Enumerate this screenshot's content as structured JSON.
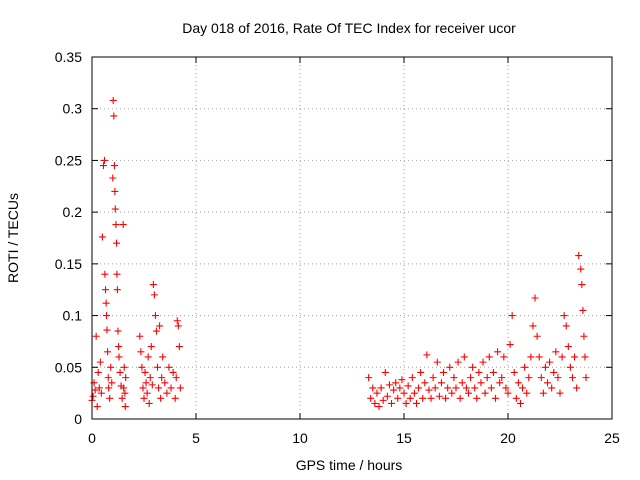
{
  "chart_data": {
    "type": "scatter",
    "title": "Day 018 of 2016, Rate Of TEC Index for receiver ucor",
    "xlabel": "GPS time / hours",
    "ylabel": "ROTI / TECUs",
    "xlim": [
      0,
      25
    ],
    "ylim": [
      0,
      0.35
    ],
    "xticks": [
      "0",
      "5",
      "10",
      "15",
      "20",
      "25"
    ],
    "yticks": [
      "0",
      "0.05",
      "0.1",
      "0.15",
      "0.2",
      "0.25",
      "0.3",
      "0.35"
    ],
    "grid": true,
    "marker": "+",
    "color": "#ff0000",
    "series": [
      {
        "points": [
          [
            0.0,
            0.018
          ],
          [
            0.05,
            0.022
          ],
          [
            0.1,
            0.035
          ],
          [
            0.15,
            0.028
          ],
          [
            0.2,
            0.08
          ],
          [
            0.25,
            0.012
          ],
          [
            0.3,
            0.045
          ],
          [
            0.35,
            0.03
          ],
          [
            0.4,
            0.055
          ],
          [
            0.45,
            0.025
          ],
          [
            0.5,
            0.176
          ],
          [
            0.55,
            0.245
          ],
          [
            0.6,
            0.25
          ],
          [
            0.62,
            0.14
          ],
          [
            0.65,
            0.125
          ],
          [
            0.68,
            0.112
          ],
          [
            0.7,
            0.1
          ],
          [
            0.72,
            0.086
          ],
          [
            0.75,
            0.065
          ],
          [
            0.78,
            0.04
          ],
          [
            0.8,
            0.03
          ],
          [
            0.85,
            0.02
          ],
          [
            0.9,
            0.05
          ],
          [
            0.95,
            0.035
          ],
          [
            1.0,
            0.233
          ],
          [
            1.02,
            0.308
          ],
          [
            1.05,
            0.293
          ],
          [
            1.08,
            0.245
          ],
          [
            1.1,
            0.22
          ],
          [
            1.12,
            0.203
          ],
          [
            1.15,
            0.188
          ],
          [
            1.18,
            0.17
          ],
          [
            1.2,
            0.14
          ],
          [
            1.22,
            0.125
          ],
          [
            1.25,
            0.085
          ],
          [
            1.28,
            0.07
          ],
          [
            1.3,
            0.06
          ],
          [
            1.35,
            0.045
          ],
          [
            1.4,
            0.032
          ],
          [
            1.45,
            0.02
          ],
          [
            1.5,
            0.188
          ],
          [
            1.52,
            0.03
          ],
          [
            1.55,
            0.05
          ],
          [
            1.58,
            0.025
          ],
          [
            1.6,
            0.012
          ],
          [
            1.62,
            0.04
          ],
          [
            2.3,
            0.08
          ],
          [
            2.35,
            0.065
          ],
          [
            2.4,
            0.05
          ],
          [
            2.45,
            0.03
          ],
          [
            2.5,
            0.02
          ],
          [
            2.55,
            0.045
          ],
          [
            2.6,
            0.035
          ],
          [
            2.65,
            0.025
          ],
          [
            2.7,
            0.06
          ],
          [
            2.75,
            0.015
          ],
          [
            2.8,
            0.04
          ],
          [
            2.85,
            0.07
          ],
          [
            2.9,
            0.033
          ],
          [
            2.95,
            0.13
          ],
          [
            3.0,
            0.12
          ],
          [
            3.05,
            0.1
          ],
          [
            3.1,
            0.085
          ],
          [
            3.15,
            0.05
          ],
          [
            3.2,
            0.03
          ],
          [
            3.25,
            0.09
          ],
          [
            3.3,
            0.02
          ],
          [
            3.35,
            0.04
          ],
          [
            3.4,
            0.06
          ],
          [
            3.5,
            0.035
          ],
          [
            3.6,
            0.025
          ],
          [
            3.7,
            0.05
          ],
          [
            3.8,
            0.03
          ],
          [
            3.9,
            0.045
          ],
          [
            4.0,
            0.02
          ],
          [
            4.05,
            0.04
          ],
          [
            4.1,
            0.095
          ],
          [
            4.15,
            0.09
          ],
          [
            4.2,
            0.07
          ],
          [
            4.25,
            0.03
          ],
          [
            13.3,
            0.04
          ],
          [
            13.4,
            0.02
          ],
          [
            13.5,
            0.03
          ],
          [
            13.6,
            0.015
          ],
          [
            13.7,
            0.025
          ],
          [
            13.8,
            0.012
          ],
          [
            13.9,
            0.03
          ],
          [
            14.0,
            0.018
          ],
          [
            14.1,
            0.045
          ],
          [
            14.2,
            0.022
          ],
          [
            14.3,
            0.033
          ],
          [
            14.4,
            0.015
          ],
          [
            14.5,
            0.028
          ],
          [
            14.6,
            0.035
          ],
          [
            14.7,
            0.02
          ],
          [
            14.8,
            0.03
          ],
          [
            14.9,
            0.038
          ],
          [
            15.0,
            0.025
          ],
          [
            15.1,
            0.015
          ],
          [
            15.2,
            0.032
          ],
          [
            15.3,
            0.02
          ],
          [
            15.4,
            0.04
          ],
          [
            15.5,
            0.025
          ],
          [
            15.6,
            0.015
          ],
          [
            15.7,
            0.03
          ],
          [
            15.8,
            0.045
          ],
          [
            15.9,
            0.02
          ],
          [
            16.0,
            0.035
          ],
          [
            16.1,
            0.062
          ],
          [
            16.2,
            0.028
          ],
          [
            16.3,
            0.02
          ],
          [
            16.4,
            0.04
          ],
          [
            16.5,
            0.03
          ],
          [
            16.6,
            0.055
          ],
          [
            16.7,
            0.022
          ],
          [
            16.8,
            0.035
          ],
          [
            16.9,
            0.045
          ],
          [
            17.0,
            0.02
          ],
          [
            17.1,
            0.03
          ],
          [
            17.2,
            0.05
          ],
          [
            17.3,
            0.025
          ],
          [
            17.4,
            0.04
          ],
          [
            17.5,
            0.03
          ],
          [
            17.6,
            0.055
          ],
          [
            17.7,
            0.02
          ],
          [
            17.8,
            0.035
          ],
          [
            17.9,
            0.06
          ],
          [
            18.0,
            0.03
          ],
          [
            18.1,
            0.025
          ],
          [
            18.2,
            0.04
          ],
          [
            18.3,
            0.05
          ],
          [
            18.4,
            0.03
          ],
          [
            18.5,
            0.02
          ],
          [
            18.6,
            0.045
          ],
          [
            18.7,
            0.035
          ],
          [
            18.8,
            0.055
          ],
          [
            18.9,
            0.025
          ],
          [
            19.0,
            0.04
          ],
          [
            19.1,
            0.06
          ],
          [
            19.2,
            0.03
          ],
          [
            19.3,
            0.045
          ],
          [
            19.4,
            0.02
          ],
          [
            19.5,
            0.065
          ],
          [
            19.6,
            0.035
          ],
          [
            19.7,
            0.04
          ],
          [
            19.8,
            0.06
          ],
          [
            19.9,
            0.03
          ],
          [
            20.0,
            0.025
          ],
          [
            20.1,
            0.072
          ],
          [
            20.2,
            0.1
          ],
          [
            20.3,
            0.045
          ],
          [
            20.4,
            0.02
          ],
          [
            20.5,
            0.035
          ],
          [
            20.6,
            0.015
          ],
          [
            20.7,
            0.03
          ],
          [
            20.8,
            0.05
          ],
          [
            20.9,
            0.025
          ],
          [
            21.0,
            0.04
          ],
          [
            21.1,
            0.06
          ],
          [
            21.2,
            0.09
          ],
          [
            21.3,
            0.117
          ],
          [
            21.4,
            0.08
          ],
          [
            21.5,
            0.06
          ],
          [
            21.6,
            0.04
          ],
          [
            21.7,
            0.025
          ],
          [
            21.8,
            0.05
          ],
          [
            21.9,
            0.035
          ],
          [
            22.0,
            0.055
          ],
          [
            22.1,
            0.03
          ],
          [
            22.2,
            0.045
          ],
          [
            22.3,
            0.065
          ],
          [
            22.4,
            0.04
          ],
          [
            22.5,
            0.025
          ],
          [
            22.6,
            0.06
          ],
          [
            22.7,
            0.1
          ],
          [
            22.8,
            0.09
          ],
          [
            22.9,
            0.07
          ],
          [
            23.0,
            0.05
          ],
          [
            23.1,
            0.04
          ],
          [
            23.2,
            0.06
          ],
          [
            23.3,
            0.03
          ],
          [
            23.4,
            0.158
          ],
          [
            23.5,
            0.145
          ],
          [
            23.55,
            0.13
          ],
          [
            23.6,
            0.105
          ],
          [
            23.65,
            0.08
          ],
          [
            23.7,
            0.06
          ],
          [
            23.75,
            0.04
          ]
        ]
      }
    ]
  }
}
